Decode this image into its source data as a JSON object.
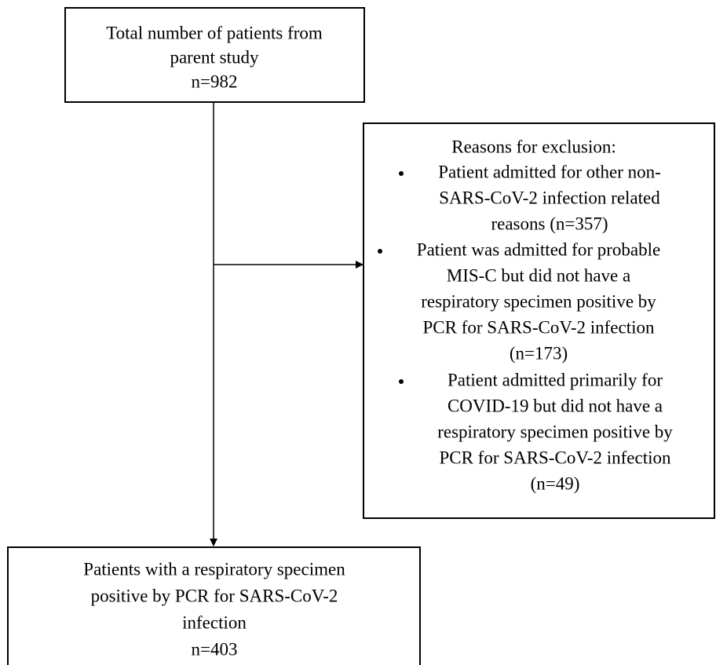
{
  "start": {
    "lines": [
      "Total number of patients from",
      "parent study",
      "n=982"
    ]
  },
  "exclusion": {
    "heading": "Reasons for exclusion:",
    "items": [
      {
        "lines": [
          "Patient admitted for other non-",
          "SARS-CoV-2 infection related",
          "reasons (n=357)"
        ]
      },
      {
        "lines": [
          "Patient was admitted for probable",
          "MIS-C but did not have a",
          "respiratory specimen positive by",
          "PCR for SARS-CoV-2 infection",
          "(n=173)"
        ]
      },
      {
        "lines": [
          "Patient admitted primarily for",
          "COVID-19 but did not have a",
          "respiratory specimen positive by",
          "PCR for SARS-CoV-2 infection",
          "(n=49)"
        ]
      }
    ]
  },
  "final": {
    "lines": [
      "Patients with a respiratory specimen",
      "positive by PCR for SARS-CoV-2",
      "infection",
      "n=403"
    ]
  }
}
